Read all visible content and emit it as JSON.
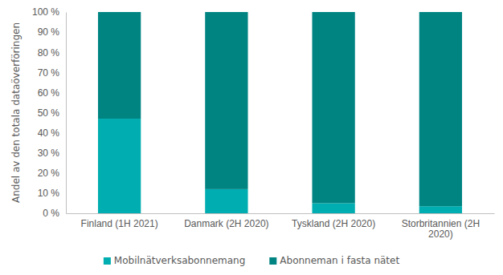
{
  "chart_data": {
    "type": "bar",
    "stacked": true,
    "y_label": "Andel av den totala dataöverföringen",
    "categories": [
      "Finland (1H 2021)",
      "Danmark (2H 2020)",
      "Tyskland (2H 2020)",
      "Storbritannien (2H 2020)"
    ],
    "series": [
      {
        "name": "Mobilnätverksabonnemang",
        "color": "#00adb0",
        "values": [
          47,
          12,
          5,
          3.5
        ]
      },
      {
        "name": "Abonneman i fasta nätet",
        "color": "#008482",
        "values": [
          53,
          88,
          95,
          96.5
        ]
      }
    ],
    "ylim": [
      0,
      100
    ],
    "yticks": [
      {
        "value": 0,
        "label": "0 %"
      },
      {
        "value": 10,
        "label": "10 %"
      },
      {
        "value": 20,
        "label": "20 %"
      },
      {
        "value": 30,
        "label": "30 %"
      },
      {
        "value": 40,
        "label": "40 %"
      },
      {
        "value": 50,
        "label": "50 %"
      },
      {
        "value": 60,
        "label": "60 %"
      },
      {
        "value": 70,
        "label": "70 %"
      },
      {
        "value": 80,
        "label": "80 %"
      },
      {
        "value": 90,
        "label": "90 %"
      },
      {
        "value": 100,
        "label": "100 %"
      }
    ],
    "grid": false,
    "legend": "bottom"
  }
}
